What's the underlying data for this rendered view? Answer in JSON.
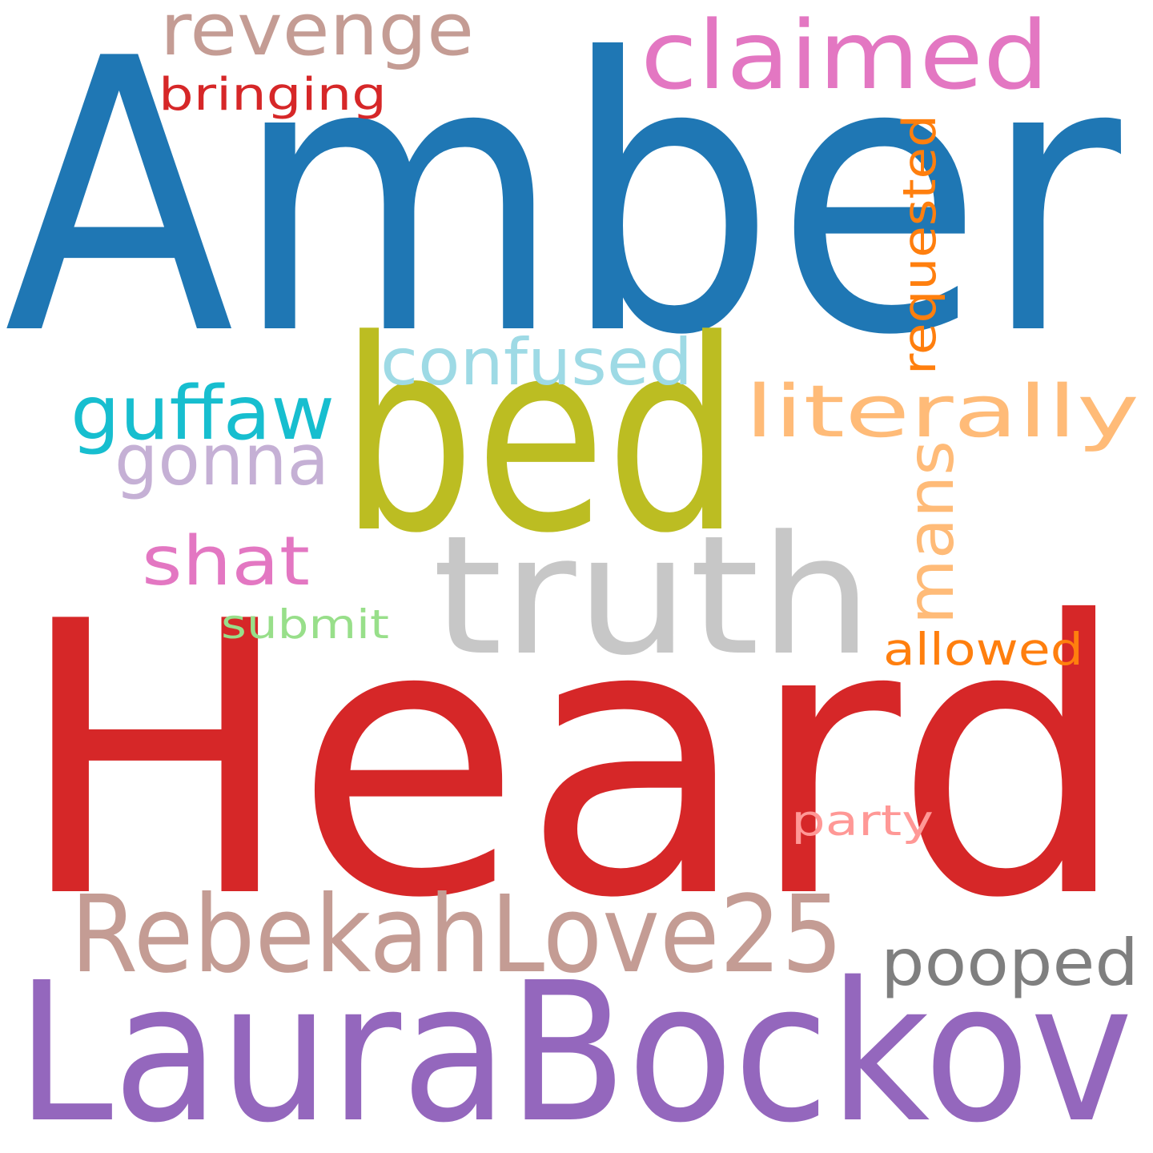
{
  "words": [
    {
      "key": "amber",
      "text": "Amber",
      "color": "#1f77b4"
    },
    {
      "key": "heard",
      "text": "Heard",
      "color": "#d62728"
    },
    {
      "key": "laurabockov",
      "text": "LauraBockov",
      "color": "#9467bd"
    },
    {
      "key": "bed",
      "text": "bed",
      "color": "#bcbd22"
    },
    {
      "key": "truth",
      "text": "truth",
      "color": "#c7c7c7"
    },
    {
      "key": "rebekahlove25",
      "text": "RebekahLove25",
      "color": "#c49c94"
    },
    {
      "key": "claimed",
      "text": "claimed",
      "color": "#e377c2"
    },
    {
      "key": "revenge",
      "text": "revenge",
      "color": "#c49c94"
    },
    {
      "key": "literally",
      "text": "literally",
      "color": "#ffbb78"
    },
    {
      "key": "guffaw",
      "text": "guffaw",
      "color": "#17becf"
    },
    {
      "key": "confused",
      "text": "confused",
      "color": "#9edae5"
    },
    {
      "key": "gonna",
      "text": "gonna",
      "color": "#c5b0d5"
    },
    {
      "key": "mans",
      "text": "mans",
      "color": "#ffbb78"
    },
    {
      "key": "shat",
      "text": "shat",
      "color": "#e377c2"
    },
    {
      "key": "pooped",
      "text": "pooped",
      "color": "#7f7f7f"
    },
    {
      "key": "bringing",
      "text": "bringing",
      "color": "#d62728"
    },
    {
      "key": "requested",
      "text": "requested",
      "color": "#ff7f0e"
    },
    {
      "key": "allowed",
      "text": "allowed",
      "color": "#ff7f0e"
    },
    {
      "key": "submit",
      "text": "submit",
      "color": "#98df8a"
    },
    {
      "key": "party",
      "text": "party",
      "color": "#ff9896"
    }
  ]
}
